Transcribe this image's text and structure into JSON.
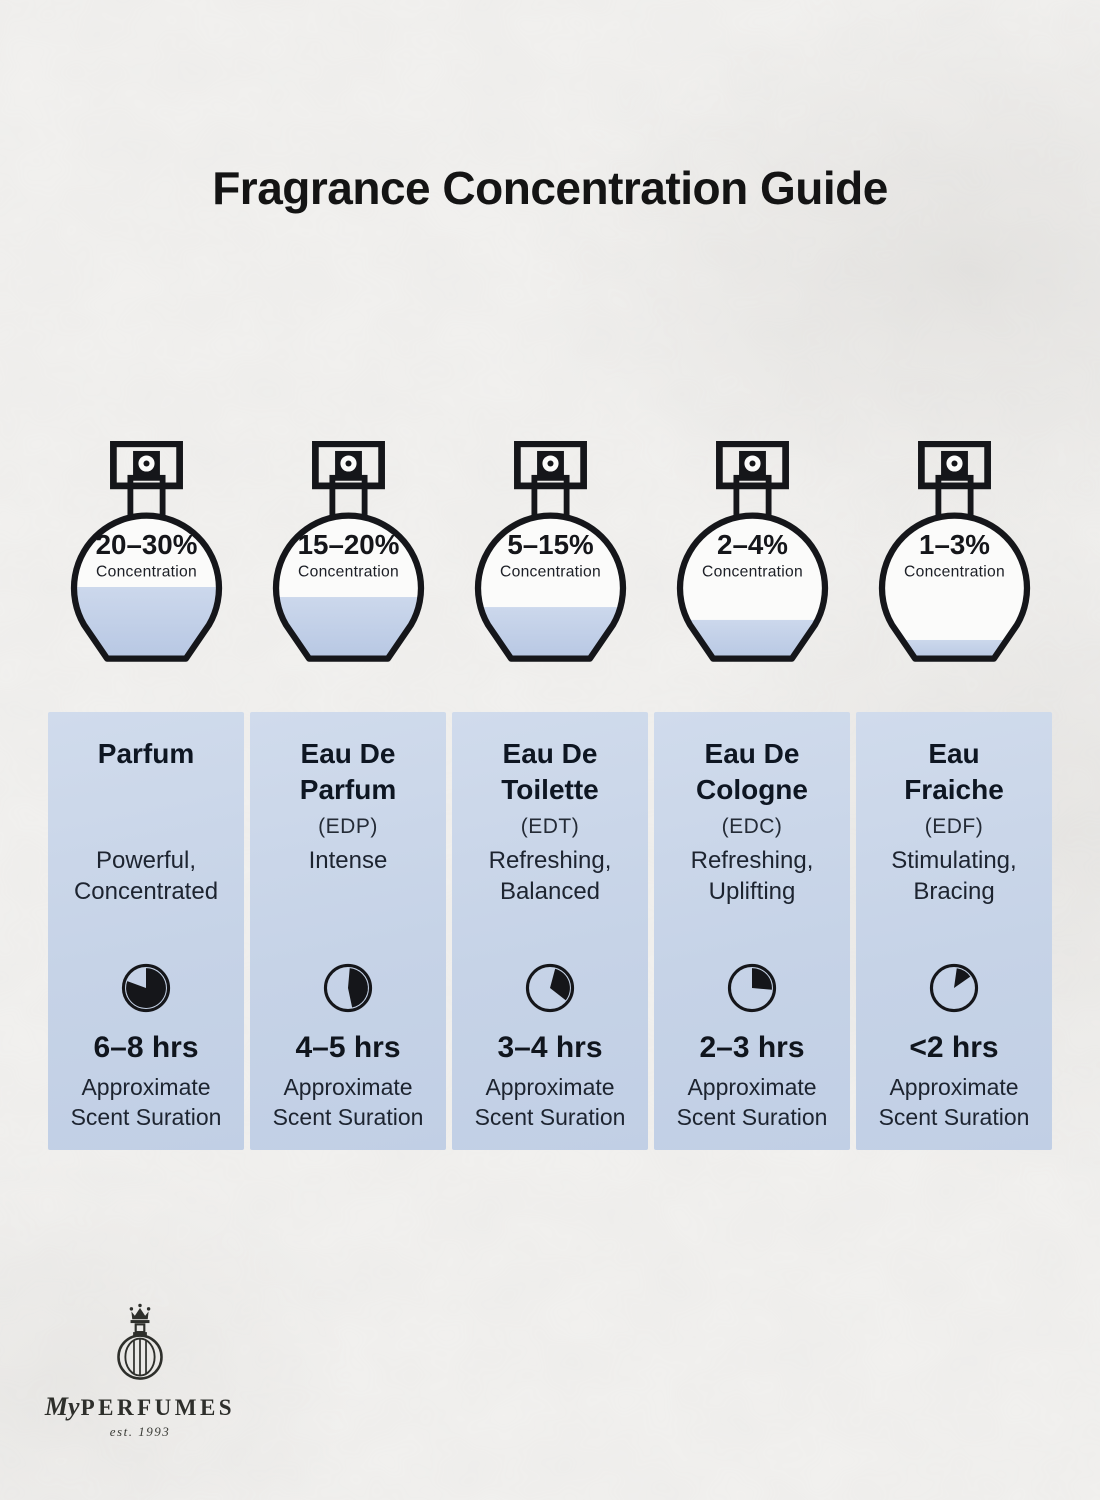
{
  "title": "Fragrance Concentration Guide",
  "bottles": [
    {
      "range": "20–30%",
      "label": "Concentration",
      "fill_percent": 50
    },
    {
      "range": "15–20%",
      "label": "Concentration",
      "fill_percent": 43
    },
    {
      "range": "5–15%",
      "label": "Concentration",
      "fill_percent": 36
    },
    {
      "range": "2–4%",
      "label": "Concentration",
      "fill_percent": 27
    },
    {
      "range": "1–3%",
      "label": "Concentration",
      "fill_percent": 13
    }
  ],
  "columns": [
    {
      "name": "Parfum",
      "abbr": "",
      "description": "Powerful,\nConcentrated",
      "duration": "6–8 hrs",
      "caption": "Approximate\nScent Suration",
      "clock": {
        "start_deg": 0,
        "end_deg": 290
      }
    },
    {
      "name": "Eau De\nParfum",
      "abbr": "(EDP)",
      "description": "Intense",
      "duration": "4–5 hrs",
      "caption": "Approximate\nScent Suration",
      "clock": {
        "start_deg": 5,
        "end_deg": 168
      }
    },
    {
      "name": "Eau De\nToilette",
      "abbr": "(EDT)",
      "description": "Refreshing,\nBalanced",
      "duration": "3–4 hrs",
      "caption": "Approximate\nScent Suration",
      "clock": {
        "start_deg": 15,
        "end_deg": 128
      }
    },
    {
      "name": "Eau De\nCologne",
      "abbr": "(EDC)",
      "description": "Refreshing,\nUplifting",
      "duration": "2–3 hrs",
      "caption": "Approximate\nScent Suration",
      "clock": {
        "start_deg": 0,
        "end_deg": 95
      }
    },
    {
      "name": "Eau\nFraiche",
      "abbr": "(EDF)",
      "description": "Stimulating,\nBracing",
      "duration": "<2 hrs",
      "caption": "Approximate\nScent Suration",
      "clock": {
        "start_deg": 8,
        "end_deg": 55
      }
    }
  ],
  "logo": {
    "prefix": "My",
    "name": "PERFUMES",
    "est": "est. 1993"
  },
  "colors": {
    "background": "#f2f1ef",
    "column_bg": "#c7d4e7",
    "liquid_top": "#ccd8ec",
    "liquid_bottom": "#b7c7e3",
    "ink": "#15161a",
    "heading": "#0e1622"
  }
}
